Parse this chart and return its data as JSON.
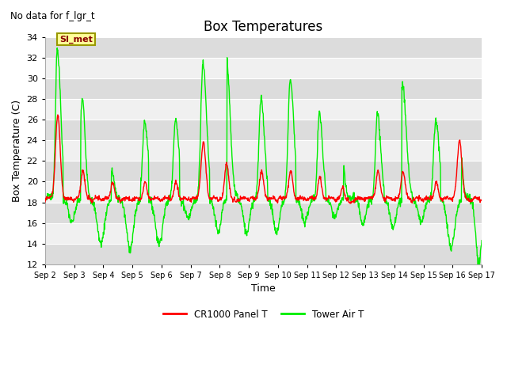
{
  "title": "Box Temperatures",
  "no_data_text": "No data for f_lgr_t",
  "ylabel": "Box Temperature (C)",
  "xlabel": "Time",
  "ylim": [
    12,
    34
  ],
  "yticks": [
    12,
    14,
    16,
    18,
    20,
    22,
    24,
    26,
    28,
    30,
    32,
    34
  ],
  "xtick_labels": [
    "Sep 2",
    "Sep 3",
    "Sep 4",
    "Sep 5",
    "Sep 6",
    "Sep 7",
    "Sep 8",
    "Sep 9",
    "Sep 10",
    "Sep 11",
    "Sep 12",
    "Sep 13",
    "Sep 14",
    "Sep 15",
    "Sep 16",
    "Sep 17"
  ],
  "legend_entries": [
    "CR1000 Panel T",
    "Tower Air T"
  ],
  "legend_colors": [
    "#ff0000",
    "#00ee00"
  ],
  "si_met_label": "SI_met",
  "si_met_bg": "#ffff99",
  "si_met_border": "#999900",
  "si_met_text_color": "#880000",
  "background_color": "#ffffff",
  "plot_bg_light": "#f0f0f0",
  "plot_bg_dark": "#dcdcdc",
  "grid_color": "#ffffff",
  "panel_t_color": "#ff0000",
  "tower_air_color": "#00ee00",
  "title_fontsize": 12,
  "axis_label_fontsize": 9,
  "tick_fontsize": 8
}
